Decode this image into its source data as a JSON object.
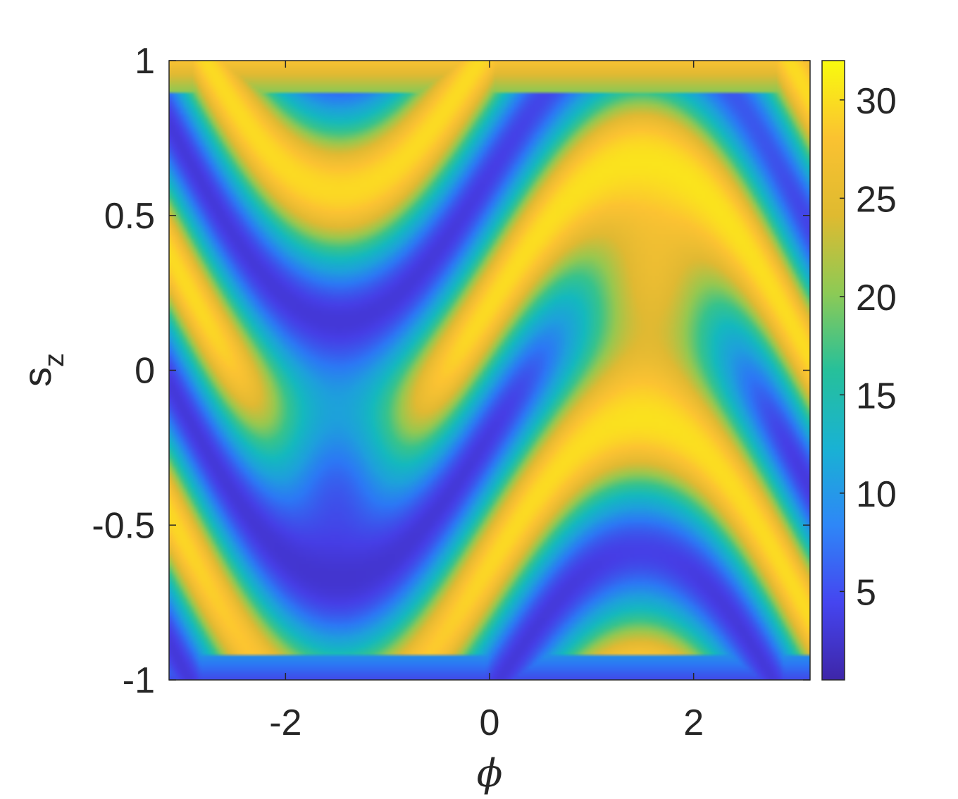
{
  "chart_data": {
    "type": "heatmap",
    "xlabel": "ϕ",
    "ylabel": "s",
    "ylabel_subscript": "z",
    "xlim": [
      -3.1416,
      3.1416
    ],
    "ylim": [
      -1,
      1
    ],
    "x_ticks": [
      -2,
      0,
      2
    ],
    "x_tick_labels": [
      "-2",
      "0",
      "2"
    ],
    "y_ticks": [
      -1,
      -0.5,
      0,
      0.5,
      1
    ],
    "y_tick_labels": [
      "-1",
      "-0.5",
      "0",
      "0.5",
      "1"
    ],
    "colorbar": {
      "range": [
        0.5,
        32
      ],
      "ticks": [
        5,
        10,
        15,
        20,
        25,
        30
      ],
      "tick_labels": [
        "5",
        "10",
        "15",
        "20",
        "25",
        "30"
      ],
      "colormap": "parula"
    },
    "grid": false,
    "field_description_centers": {
      "high_vortex": {
        "x": 1.6,
        "y": 0.3,
        "value": 31
      },
      "low_vortex": {
        "x": -1.5,
        "y": -0.4,
        "value": 1
      }
    }
  }
}
